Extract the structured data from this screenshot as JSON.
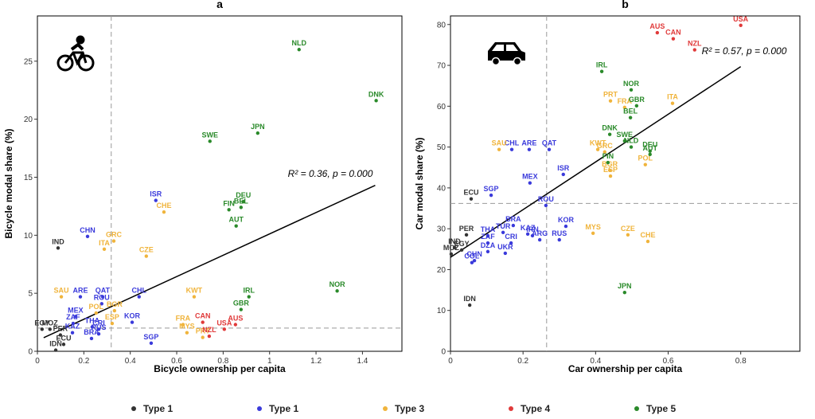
{
  "chart_data": [
    {
      "type": "scatter",
      "title": "a",
      "xlabel": "Bicycle ownership per capita",
      "ylabel": "Bicycle modal share (%)",
      "xlim": [
        0,
        1.57
      ],
      "ylim": [
        0,
        28.9
      ],
      "xticks": [
        0,
        0.2,
        0.4,
        0.6,
        0.8,
        1,
        1.2,
        1.4
      ],
      "yticks": [
        0,
        5,
        10,
        15,
        20,
        25
      ],
      "annotation": "R² = 0.36, p = 0.000",
      "fit_line": {
        "x": [
          0.027,
          1.455
        ],
        "y": [
          1.17,
          14.3
        ]
      },
      "ref_lines": {
        "x": 0.318,
        "y": 2.0
      },
      "series": [
        {
          "name": "Type 1",
          "color": "#333333",
          "labels": [
            "IND",
            "EGY",
            "MOZ",
            "PER",
            "ECU",
            "IDN"
          ],
          "x": [
            0.089,
            0.02,
            0.054,
            0.099,
            0.113,
            0.079
          ],
          "values": [
            8.9,
            1.9,
            1.9,
            1.4,
            0.6,
            0.1
          ]
        },
        {
          "name": "Type 1",
          "color": "#3a3adb",
          "labels": [
            "CHN",
            "ISR",
            "ARE",
            "QAT",
            "CHL",
            "ROU",
            "MEX",
            "ZAF",
            "THA",
            "CRI",
            "KAZ",
            "RUS",
            "BRA",
            "KOR",
            "SGP"
          ],
          "x": [
            0.216,
            0.51,
            0.185,
            0.281,
            0.438,
            0.277,
            0.164,
            0.154,
            0.236,
            0.264,
            0.151,
            0.264,
            0.233,
            0.408,
            0.49
          ],
          "values": [
            9.9,
            13.0,
            4.7,
            4.7,
            4.7,
            4.1,
            3.0,
            2.4,
            2.1,
            1.9,
            1.6,
            1.5,
            1.1,
            2.5,
            0.7
          ]
        },
        {
          "name": "Type 3",
          "color": "#f0b43c",
          "labels": [
            "CHE",
            "GRC",
            "ITA",
            "CZE",
            "SAU",
            "KWT",
            "POL",
            "BGR",
            "ESP",
            "FRA",
            "MYS",
            "PRT"
          ],
          "x": [
            0.545,
            0.329,
            0.288,
            0.469,
            0.103,
            0.675,
            0.253,
            0.332,
            0.322,
            0.627,
            0.644,
            0.712
          ],
          "values": [
            12.0,
            9.5,
            8.8,
            8.2,
            4.7,
            4.7,
            3.3,
            3.5,
            2.4,
            2.3,
            1.6,
            1.2
          ]
        },
        {
          "name": "Type 4",
          "color": "#e03a3a",
          "labels": [
            "CAN",
            "USA",
            "NZL",
            "AUS"
          ],
          "x": [
            0.712,
            0.805,
            0.74,
            0.853
          ],
          "values": [
            2.5,
            1.9,
            1.3,
            2.3
          ]
        },
        {
          "name": "Type 5",
          "color": "#2a8a2a",
          "labels": [
            "NLD",
            "DNK",
            "SWE",
            "JPN",
            "DEU",
            "FIN",
            "BEL",
            "AUT",
            "IRL",
            "GBR",
            "NOR"
          ],
          "x": [
            1.127,
            1.459,
            0.743,
            0.949,
            0.887,
            0.825,
            0.877,
            0.856,
            0.911,
            0.877,
            1.291
          ],
          "values": [
            26.0,
            21.6,
            18.1,
            18.8,
            12.9,
            12.2,
            12.4,
            10.8,
            4.7,
            3.6,
            5.2
          ]
        }
      ]
    },
    {
      "type": "scatter",
      "title": "b",
      "xlabel": "Car ownership per capita",
      "ylabel": "Car modal share (%)",
      "xlim": [
        0,
        0.963
      ],
      "ylim": [
        0,
        82.1
      ],
      "xticks": [
        0,
        0.2,
        0.4,
        0.6,
        0.8
      ],
      "yticks": [
        0,
        10,
        20,
        30,
        40,
        50,
        60,
        70,
        80
      ],
      "annotation": "R² = 0.57, p = 0.000",
      "fit_line": {
        "x": [
          0,
          0.8
        ],
        "y": [
          23.0,
          69.7
        ]
      },
      "ref_lines": {
        "x": 0.265,
        "y": 36.2
      },
      "series": [
        {
          "name": "Type 1",
          "color": "#333333",
          "labels": [
            "ECU",
            "PER",
            "IND",
            "EGY",
            "MOZ",
            "IDN"
          ],
          "x": [
            0.057,
            0.044,
            0.011,
            0.031,
            0.002,
            0.053
          ],
          "values": [
            37.3,
            28.5,
            25.4,
            24.8,
            23.8,
            11.3
          ]
        },
        {
          "name": "Type 1",
          "color": "#3a3adb",
          "labels": [
            "CHL",
            "ARE",
            "QAT",
            "ISR",
            "SGP",
            "MEX",
            "ROU",
            "BRA",
            "KOR",
            "KAZ",
            "TUR",
            "THA",
            "IRN",
            "ZAF",
            "CRI",
            "ARG",
            "RUS",
            "DZA",
            "UKR",
            "CHN",
            "COL"
          ],
          "x": [
            0.169,
            0.217,
            0.272,
            0.311,
            0.112,
            0.219,
            0.263,
            0.173,
            0.318,
            0.213,
            0.145,
            0.103,
            0.226,
            0.103,
            0.167,
            0.246,
            0.3,
            0.103,
            0.151,
            0.066,
            0.059
          ],
          "values": [
            49.4,
            49.4,
            49.4,
            43.3,
            38.2,
            41.2,
            35.7,
            30.8,
            30.6,
            28.7,
            29.1,
            28.3,
            28.3,
            26.5,
            26.5,
            27.3,
            27.3,
            24.4,
            24.0,
            22.2,
            21.7
          ]
        },
        {
          "name": "Type 3",
          "color": "#f0b43c",
          "labels": [
            "ITA",
            "PRT",
            "FRA",
            "SAU",
            "KWT",
            "GRC",
            "BGR",
            "POL",
            "ESP",
            "MYS",
            "CZE",
            "CHE"
          ],
          "x": [
            0.612,
            0.441,
            0.48,
            0.134,
            0.406,
            0.425,
            0.439,
            0.537,
            0.441,
            0.393,
            0.489,
            0.544
          ],
          "values": [
            60.7,
            61.3,
            59.7,
            49.4,
            49.4,
            48.8,
            44.3,
            45.7,
            42.9,
            28.9,
            28.5,
            26.9
          ]
        },
        {
          "name": "Type 4",
          "color": "#e03a3a",
          "labels": [
            "AUS",
            "CAN",
            "NZL",
            "USA"
          ],
          "x": [
            0.57,
            0.614,
            0.673,
            0.8
          ],
          "values": [
            78.0,
            76.5,
            73.8,
            79.8
          ]
        },
        {
          "name": "Type 5",
          "color": "#2a8a2a",
          "labels": [
            "IRL",
            "NOR",
            "GBR",
            "BEL",
            "DNK",
            "SWE",
            "NLD",
            "DEU",
            "AUT",
            "FIN",
            "JPN"
          ],
          "x": [
            0.417,
            0.498,
            0.513,
            0.496,
            0.439,
            0.48,
            0.498,
            0.55,
            0.55,
            0.434,
            0.48
          ],
          "values": [
            68.5,
            64.0,
            60.1,
            57.2,
            53.1,
            51.5,
            50.0,
            49.0,
            48.2,
            46.2,
            14.4
          ]
        }
      ]
    }
  ]
}
